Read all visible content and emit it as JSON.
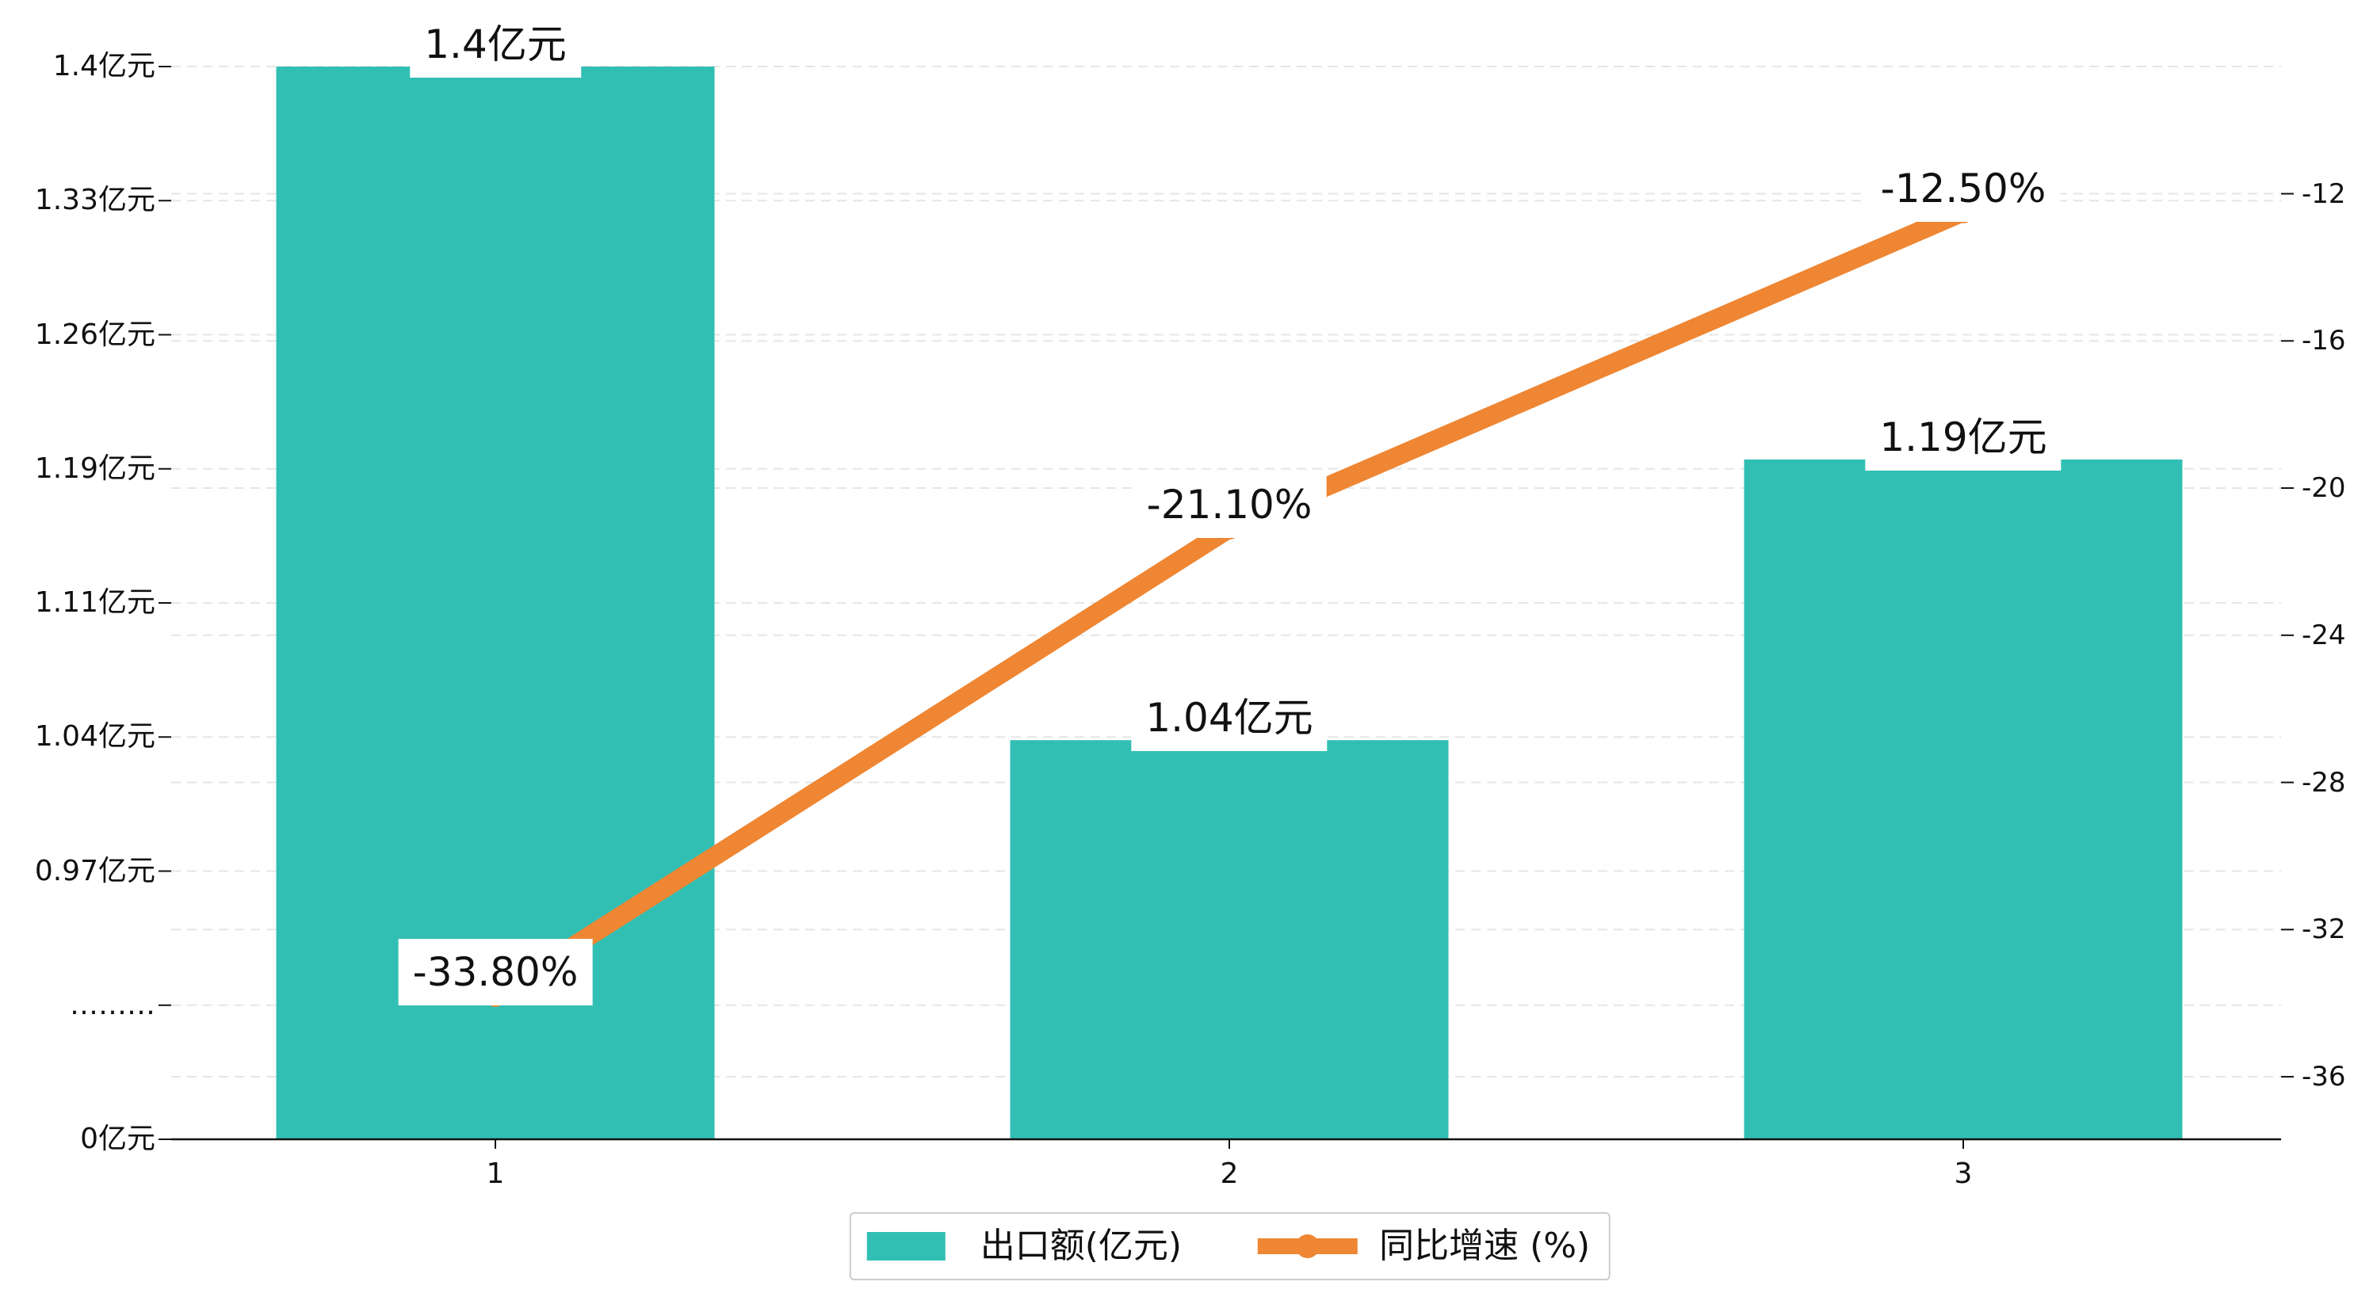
{
  "chart_data": {
    "type": "bar",
    "categories": [
      "1",
      "2",
      "3"
    ],
    "series": [
      {
        "name": "出口额(亿元)",
        "type": "bar",
        "axis": "left",
        "values": [
          1.4,
          1.04,
          1.19
        ],
        "labels": [
          "1.4亿元",
          "1.04亿元",
          "1.19亿元"
        ],
        "color": "#32BFB3"
      },
      {
        "name": "同比增速 (%)",
        "type": "line",
        "axis": "right",
        "values": [
          -33.8,
          -21.1,
          -12.5
        ],
        "labels": [
          "-33.80%",
          "-21.10%",
          "-12.50%"
        ],
        "color": "#EE8633"
      }
    ],
    "y_left": {
      "lim": [
        0,
        1.4
      ],
      "broken": true,
      "ticks": [
        1.4,
        1.33,
        1.26,
        1.19,
        1.11,
        1.04,
        0.97
      ],
      "tick_labels": [
        "1.4亿元",
        "1.33亿元",
        "1.26亿元",
        "1.19亿元",
        "1.11亿元",
        "1.04亿元",
        "0.97亿元"
      ],
      "break_label": "………",
      "zero_label": "0亿元"
    },
    "y_right": {
      "lim": [
        -37.7,
        -8.5
      ],
      "ticks": [
        -12,
        -16,
        -20,
        -24,
        -28,
        -32,
        -36
      ],
      "tick_labels": [
        "-12",
        "-16",
        "-20",
        "-24",
        "-28",
        "-32",
        "-36"
      ]
    },
    "grid": true,
    "legend": "bottom"
  }
}
